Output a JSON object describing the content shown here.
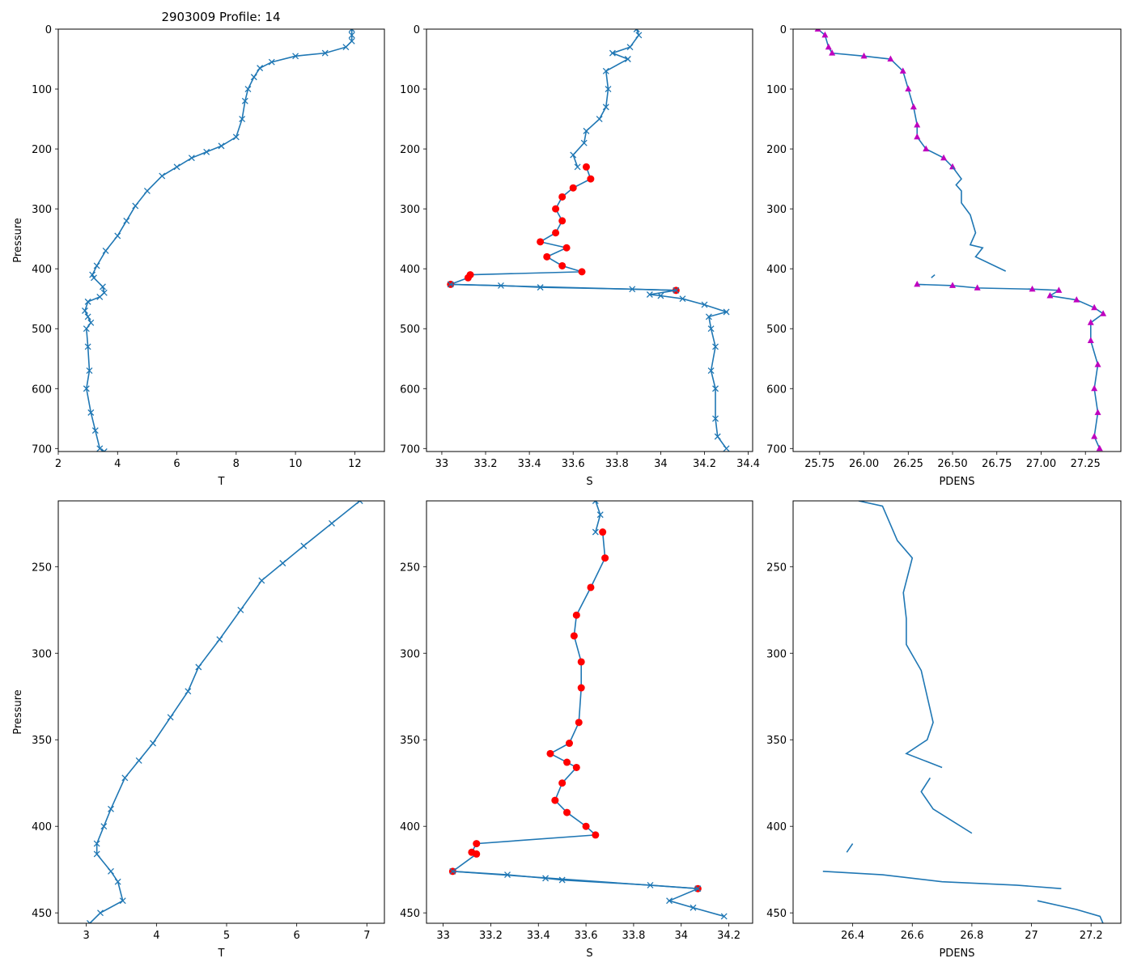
{
  "figure": {
    "title": "2903009 Profile: 14"
  },
  "colors": {
    "line": "#1f77b4",
    "bad": "#ff0000",
    "density_marker": "#bf00bf"
  },
  "chart_data": [
    {
      "id": "T-full",
      "type": "line",
      "xlabel": "T",
      "ylabel": "Pressure",
      "xlim": [
        2,
        13
      ],
      "ylim": [
        705,
        0
      ],
      "xticks": [
        2,
        4,
        6,
        8,
        10,
        12
      ],
      "yticks": [
        0,
        100,
        200,
        300,
        400,
        500,
        600,
        700
      ],
      "series": [
        {
          "name": "T",
          "marker": "x",
          "points": [
            [
              11.9,
              0
            ],
            [
              11.9,
              10
            ],
            [
              11.9,
              20
            ],
            [
              11.7,
              30
            ],
            [
              11,
              40
            ],
            [
              10,
              45
            ],
            [
              9.2,
              55
            ],
            [
              8.8,
              65
            ],
            [
              8.6,
              80
            ],
            [
              8.4,
              100
            ],
            [
              8.3,
              120
            ],
            [
              8.2,
              150
            ],
            [
              8.0,
              180
            ],
            [
              7.5,
              195
            ],
            [
              7.0,
              205
            ],
            [
              6.5,
              215
            ],
            [
              6.0,
              230
            ],
            [
              5.5,
              245
            ],
            [
              5.0,
              270
            ],
            [
              4.6,
              295
            ],
            [
              4.3,
              320
            ],
            [
              4.0,
              345
            ],
            [
              3.6,
              370
            ],
            [
              3.3,
              395
            ],
            [
              3.15,
              410
            ],
            [
              3.2,
              415
            ],
            [
              3.5,
              430
            ],
            [
              3.55,
              440
            ],
            [
              3.4,
              447
            ],
            [
              3.0,
              455
            ],
            [
              2.9,
              470
            ],
            [
              3.0,
              480
            ],
            [
              3.1,
              490
            ],
            [
              2.95,
              500
            ],
            [
              3.0,
              530
            ],
            [
              3.05,
              570
            ],
            [
              2.95,
              600
            ],
            [
              3.1,
              640
            ],
            [
              3.25,
              670
            ],
            [
              3.4,
              700
            ],
            [
              3.55,
              705
            ]
          ]
        }
      ]
    },
    {
      "id": "S-full",
      "type": "line",
      "xlabel": "S",
      "ylabel": "",
      "xlim": [
        32.93,
        34.42
      ],
      "ylim": [
        705,
        0
      ],
      "xticks": [
        33.0,
        33.2,
        33.4,
        33.6,
        33.8,
        34.0,
        34.2,
        34.4
      ],
      "yticks": [
        0,
        100,
        200,
        300,
        400,
        500,
        600,
        700
      ],
      "series": [
        {
          "name": "S",
          "marker": "x",
          "points": [
            [
              33.89,
              0
            ],
            [
              33.9,
              10
            ],
            [
              33.86,
              30
            ],
            [
              33.78,
              40
            ],
            [
              33.85,
              50
            ],
            [
              33.75,
              70
            ],
            [
              33.76,
              100
            ],
            [
              33.75,
              130
            ],
            [
              33.72,
              150
            ],
            [
              33.66,
              170
            ],
            [
              33.65,
              190
            ],
            [
              33.6,
              210
            ],
            [
              33.62,
              230
            ]
          ]
        },
        {
          "name": "S flagged",
          "marker": "o",
          "color_key": "bad",
          "points": [
            [
              33.66,
              230
            ],
            [
              33.68,
              250
            ],
            [
              33.6,
              265
            ],
            [
              33.55,
              280
            ],
            [
              33.52,
              300
            ],
            [
              33.55,
              320
            ],
            [
              33.52,
              340
            ],
            [
              33.45,
              355
            ],
            [
              33.57,
              365
            ],
            [
              33.48,
              380
            ],
            [
              33.55,
              395
            ],
            [
              33.64,
              405
            ],
            [
              33.13,
              410
            ],
            [
              33.12,
              415
            ],
            [
              33.04,
              426
            ],
            [
              34.07,
              436
            ]
          ]
        },
        {
          "name": "S deep",
          "marker": "x",
          "points": [
            [
              33.04,
              426
            ],
            [
              33.27,
              428
            ],
            [
              33.45,
              431
            ],
            [
              33.87,
              434
            ],
            [
              34.07,
              436
            ],
            [
              33.95,
              443
            ],
            [
              34.0,
              445
            ],
            [
              34.1,
              450
            ],
            [
              34.2,
              460
            ],
            [
              34.3,
              472
            ],
            [
              34.22,
              480
            ],
            [
              34.23,
              500
            ],
            [
              34.25,
              530
            ],
            [
              34.23,
              570
            ],
            [
              34.25,
              600
            ],
            [
              34.25,
              650
            ],
            [
              34.26,
              680
            ],
            [
              34.3,
              700
            ]
          ]
        }
      ]
    },
    {
      "id": "PDENS-full",
      "type": "line",
      "xlabel": "PDENS",
      "ylabel": "",
      "xlim": [
        25.6,
        27.45
      ],
      "ylim": [
        705,
        0
      ],
      "xticks": [
        25.75,
        26.0,
        26.25,
        26.5,
        26.75,
        27.0,
        27.25
      ],
      "yticks": [
        0,
        100,
        200,
        300,
        400,
        500,
        600,
        700
      ],
      "xtick_labels": [
        "25.75",
        "26.00",
        "26.25",
        "26.50",
        "26.75",
        "27.00",
        "27.25"
      ],
      "series": [
        {
          "name": "PDENS shallow",
          "marker": "^",
          "points": [
            [
              25.74,
              0
            ],
            [
              25.78,
              10
            ],
            [
              25.8,
              30
            ],
            [
              25.82,
              40
            ],
            [
              26.0,
              45
            ],
            [
              26.15,
              50
            ],
            [
              26.22,
              70
            ],
            [
              26.25,
              100
            ],
            [
              26.28,
              130
            ],
            [
              26.3,
              160
            ],
            [
              26.3,
              180
            ],
            [
              26.35,
              200
            ],
            [
              26.45,
              215
            ],
            [
              26.5,
              230
            ]
          ]
        },
        {
          "name": "PDENS mid",
          "marker": "none",
          "points": [
            [
              26.5,
              230
            ],
            [
              26.55,
              250
            ],
            [
              26.52,
              260
            ],
            [
              26.55,
              270
            ],
            [
              26.55,
              290
            ],
            [
              26.6,
              310
            ],
            [
              26.63,
              340
            ],
            [
              26.6,
              360
            ],
            [
              26.67,
              365
            ],
            [
              26.63,
              380
            ],
            [
              26.8,
              404
            ]
          ]
        },
        {
          "name": "PDENS tail",
          "marker": "none",
          "points": [
            [
              26.4,
              410
            ],
            [
              26.38,
              415
            ]
          ]
        },
        {
          "name": "PDENS deep",
          "marker": "^",
          "points": [
            [
              26.3,
              426
            ],
            [
              26.5,
              428
            ],
            [
              26.64,
              432
            ],
            [
              26.95,
              434
            ],
            [
              27.1,
              436
            ],
            [
              27.05,
              445
            ],
            [
              27.2,
              452
            ],
            [
              27.3,
              465
            ],
            [
              27.35,
              475
            ],
            [
              27.28,
              490
            ],
            [
              27.28,
              520
            ],
            [
              27.32,
              560
            ],
            [
              27.3,
              600
            ],
            [
              27.32,
              640
            ],
            [
              27.3,
              680
            ],
            [
              27.33,
              700
            ]
          ]
        }
      ]
    },
    {
      "id": "T-zoom",
      "type": "line",
      "xlabel": "T",
      "ylabel": "Pressure",
      "xlim": [
        2.6,
        7.25
      ],
      "ylim": [
        456,
        212
      ],
      "xticks": [
        3,
        4,
        5,
        6,
        7
      ],
      "yticks": [
        250,
        300,
        350,
        400,
        450
      ],
      "series": [
        {
          "name": "T",
          "marker": "x",
          "points": [
            [
              6.9,
              212
            ],
            [
              6.5,
              225
            ],
            [
              6.1,
              238
            ],
            [
              5.8,
              248
            ],
            [
              5.5,
              258
            ],
            [
              5.2,
              275
            ],
            [
              4.9,
              292
            ],
            [
              4.6,
              308
            ],
            [
              4.45,
              322
            ],
            [
              4.2,
              337
            ],
            [
              3.95,
              352
            ],
            [
              3.75,
              362
            ],
            [
              3.55,
              372
            ],
            [
              3.35,
              390
            ],
            [
              3.25,
              400
            ],
            [
              3.15,
              410
            ],
            [
              3.15,
              416
            ],
            [
              3.35,
              426
            ],
            [
              3.45,
              432
            ],
            [
              3.52,
              443
            ],
            [
              3.2,
              450
            ],
            [
              3.05,
              456
            ]
          ]
        }
      ]
    },
    {
      "id": "S-zoom",
      "type": "line",
      "xlabel": "S",
      "ylabel": "",
      "xlim": [
        32.93,
        34.3
      ],
      "ylim": [
        456,
        212
      ],
      "xticks": [
        33.0,
        33.2,
        33.4,
        33.6,
        33.8,
        34.0,
        34.2
      ],
      "yticks": [
        250,
        300,
        350,
        400,
        450
      ],
      "series": [
        {
          "name": "S",
          "marker": "x",
          "points": [
            [
              33.64,
              212
            ],
            [
              33.66,
              220
            ],
            [
              33.64,
              230
            ]
          ]
        },
        {
          "name": "S flagged",
          "marker": "o",
          "color_key": "bad",
          "points": [
            [
              33.67,
              230
            ],
            [
              33.68,
              245
            ],
            [
              33.62,
              262
            ],
            [
              33.56,
              278
            ],
            [
              33.55,
              290
            ],
            [
              33.58,
              305
            ],
            [
              33.58,
              320
            ],
            [
              33.57,
              340
            ],
            [
              33.53,
              352
            ],
            [
              33.45,
              358
            ],
            [
              33.52,
              363
            ],
            [
              33.56,
              366
            ],
            [
              33.5,
              375
            ],
            [
              33.47,
              385
            ],
            [
              33.52,
              392
            ],
            [
              33.6,
              400
            ],
            [
              33.64,
              405
            ],
            [
              33.14,
              410
            ],
            [
              33.12,
              415
            ],
            [
              33.14,
              416
            ],
            [
              33.04,
              426
            ],
            [
              34.07,
              436
            ]
          ]
        },
        {
          "name": "S deep",
          "marker": "x",
          "points": [
            [
              33.04,
              426
            ],
            [
              33.27,
              428
            ],
            [
              33.43,
              430
            ],
            [
              33.5,
              431
            ],
            [
              33.87,
              434
            ],
            [
              34.07,
              436
            ],
            [
              33.95,
              443
            ],
            [
              34.05,
              447
            ],
            [
              34.18,
              452
            ]
          ]
        }
      ]
    },
    {
      "id": "PDENS-zoom",
      "type": "line",
      "xlabel": "PDENS",
      "ylabel": "",
      "xlim": [
        26.2,
        27.3
      ],
      "ylim": [
        456,
        212
      ],
      "xticks": [
        26.4,
        26.6,
        26.8,
        27.0,
        27.2
      ],
      "yticks": [
        250,
        300,
        350,
        400,
        450
      ],
      "series": [
        {
          "name": "PDENS",
          "marker": "none",
          "points": [
            [
              26.42,
              212
            ],
            [
              26.5,
              215
            ],
            [
              26.55,
              235
            ],
            [
              26.6,
              245
            ],
            [
              26.57,
              265
            ],
            [
              26.58,
              280
            ],
            [
              26.58,
              295
            ],
            [
              26.63,
              310
            ],
            [
              26.67,
              340
            ],
            [
              26.65,
              350
            ],
            [
              26.58,
              358
            ],
            [
              26.7,
              366
            ]
          ]
        },
        {
          "name": "PDENS lower",
          "marker": "none",
          "points": [
            [
              26.66,
              372
            ],
            [
              26.63,
              380
            ],
            [
              26.67,
              390
            ],
            [
              26.8,
              404
            ]
          ]
        },
        {
          "name": "PDENS tail",
          "marker": "none",
          "points": [
            [
              26.4,
              410
            ],
            [
              26.38,
              415
            ]
          ]
        },
        {
          "name": "PDENS deep",
          "marker": "none",
          "points": [
            [
              26.3,
              426
            ],
            [
              26.5,
              428
            ],
            [
              26.7,
              432
            ],
            [
              26.95,
              434
            ],
            [
              27.1,
              436
            ]
          ]
        },
        {
          "name": "PDENS bottom",
          "marker": "none",
          "points": [
            [
              27.02,
              443
            ],
            [
              27.15,
              448
            ],
            [
              27.23,
              452
            ],
            [
              27.24,
              456
            ]
          ]
        }
      ]
    }
  ]
}
